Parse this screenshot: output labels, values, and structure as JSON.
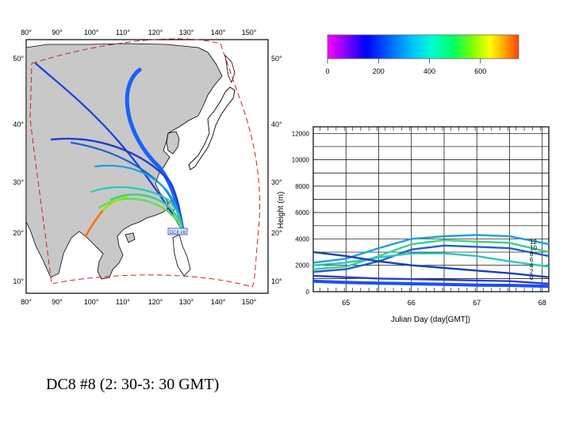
{
  "caption": "DC8 #8  (2: 30-3: 30 GMT)",
  "map": {
    "lon_ticks_top": [
      "80°",
      "90°",
      "100°",
      "110°",
      "120°",
      "130°",
      "140°",
      "150°"
    ],
    "lon_ticks_bottom": [
      "80°",
      "90°",
      "100°",
      "110°",
      "120°",
      "130°",
      "140°",
      "150°"
    ],
    "lat_ticks_left": [
      "50°",
      "40°",
      "30°",
      "20°",
      "10°"
    ],
    "lat_ticks_right": [
      "50°",
      "40°",
      "30°",
      "20°",
      "10°"
    ],
    "origin_label": "DC8 #8",
    "colors": {
      "land": "#c8c8c8",
      "ocean": "#ffffff",
      "boundary": "#d02020"
    }
  },
  "colorbar": {
    "ticks": [
      "0",
      "200",
      "400",
      "600"
    ],
    "range": [
      0,
      750
    ],
    "stops": [
      "#ff00ff",
      "#8000ff",
      "#0000ff",
      "#0060ff",
      "#00c0ff",
      "#00ffd0",
      "#00ff60",
      "#80ff00",
      "#ffff00",
      "#ffa000",
      "#ff4000"
    ]
  },
  "chart_data": {
    "type": "line",
    "xlabel": "Julian Day (day[GMT])",
    "ylabel": "Height (m)",
    "xlim": [
      64.5,
      68.1
    ],
    "ylim": [
      0,
      12500
    ],
    "x_ticks": [
      "65",
      "66",
      "67",
      "68"
    ],
    "y_ticks": [
      "0",
      "2000",
      "4000",
      "6000",
      "8000",
      "10000",
      "12000"
    ],
    "end_labels": [
      "12",
      "10",
      "8",
      "6",
      "4",
      "2",
      "0"
    ],
    "series": [
      {
        "name": "12",
        "color": "#18a0e0",
        "x": [
          64.5,
          65.0,
          65.5,
          66.0,
          66.5,
          67.0,
          67.5,
          68.1
        ],
        "y": [
          2200,
          2500,
          3300,
          4000,
          4200,
          4300,
          4200,
          3600
        ]
      },
      {
        "name": "10",
        "color": "#3ad08a",
        "x": [
          64.5,
          65.0,
          65.5,
          66.0,
          66.5,
          67.0,
          67.5,
          68.1
        ],
        "y": [
          1700,
          1900,
          2700,
          3600,
          3900,
          3800,
          3700,
          3000
        ]
      },
      {
        "name": "8",
        "color": "#1f5fd0",
        "x": [
          64.5,
          65.0,
          65.5,
          66.0,
          66.5,
          67.0,
          67.5,
          68.1
        ],
        "y": [
          1500,
          1700,
          2300,
          3200,
          3500,
          3400,
          3300,
          2700
        ]
      },
      {
        "name": "6",
        "color": "#28c8c0",
        "x": [
          64.5,
          65.0,
          65.5,
          66.0,
          66.5,
          67.0,
          67.5,
          68.1
        ],
        "y": [
          2000,
          2200,
          2600,
          2900,
          2900,
          2700,
          2300,
          1900
        ]
      },
      {
        "name": "4",
        "color": "#1840b8",
        "x": [
          64.5,
          65.0,
          65.5,
          66.0,
          66.5,
          67.0,
          67.5,
          68.1
        ],
        "y": [
          3000,
          2700,
          2300,
          2000,
          1800,
          1600,
          1400,
          1100
        ]
      },
      {
        "name": "2",
        "color": "#2e3fc8",
        "x": [
          64.5,
          65.0,
          65.5,
          66.0,
          66.5,
          67.0,
          67.5,
          68.1
        ],
        "y": [
          1200,
          1100,
          1000,
          950,
          900,
          850,
          800,
          600
        ]
      },
      {
        "name": "0",
        "color": "#1850ff",
        "x": [
          64.5,
          65.0,
          65.5,
          66.0,
          66.5,
          67.0,
          67.5,
          68.1
        ],
        "y": [
          800,
          700,
          650,
          600,
          550,
          500,
          480,
          400
        ]
      }
    ]
  }
}
